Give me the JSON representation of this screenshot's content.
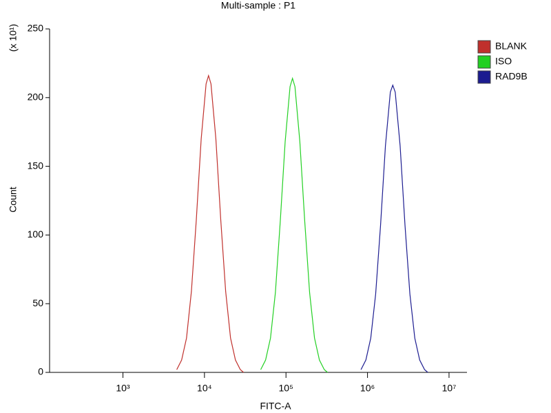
{
  "chart_data": {
    "type": "line",
    "title": "Multi-sample : P1",
    "x_label": "FITC-A",
    "y_label": "Count",
    "y_multiplier": "(x 10¹)",
    "xscale": "log",
    "xlim": [
      126,
      16600000
    ],
    "xticks": [
      {
        "value": 1000,
        "label": "10³"
      },
      {
        "value": 10000,
        "label": "10⁴"
      },
      {
        "value": 100000,
        "label": "10⁵"
      },
      {
        "value": 1000000,
        "label": "10⁶"
      },
      {
        "value": 10000000,
        "label": "10⁷"
      }
    ],
    "ylim": [
      0,
      250
    ],
    "yticks": [
      0,
      50,
      100,
      150,
      200,
      250
    ],
    "legend": "right",
    "series": [
      {
        "name": "BLANK",
        "color": "#c0302c",
        "x": [
          4571,
          5248,
          6026,
          6918,
          7943,
          9120,
          10471,
          11220,
          12023,
          13804,
          15849,
          18197,
          20893,
          23988,
          27542,
          30200
        ],
        "values": [
          2,
          9,
          25,
          59,
          111,
          170,
          210,
          216,
          210,
          170,
          111,
          59,
          25,
          9,
          2,
          0
        ]
      },
      {
        "name": "ISO",
        "color": "#22d022",
        "x": [
          48978,
          56234,
          64565,
          74131,
          85114,
          97724,
          112202,
          120226,
          128825,
          147911,
          169824,
          194984,
          223872,
          257040,
          295121,
          323594
        ],
        "values": [
          2,
          9,
          25,
          58,
          110,
          168,
          208,
          214,
          208,
          168,
          110,
          58,
          25,
          9,
          2,
          0
        ]
      },
      {
        "name": "RAD9B",
        "color": "#1c1c90",
        "x": [
          831764,
          954993,
          1096478,
          1258925,
          1445440,
          1659587,
          1905461,
          2041738,
          2187762,
          2511886,
          2884032,
          3311311,
          3801894,
          4365158,
          5011872,
          5495409
        ],
        "values": [
          2,
          9,
          25,
          57,
          107,
          165,
          204,
          209,
          204,
          165,
          107,
          57,
          25,
          9,
          2,
          0
        ]
      }
    ]
  }
}
